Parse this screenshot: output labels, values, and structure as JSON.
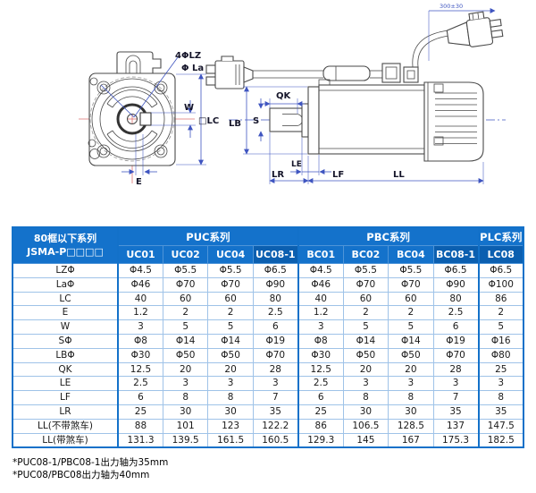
{
  "diagram": {
    "front_view": {
      "bolt_holes_label": "4ΦLZ",
      "bolt_circle_label": "Φ La",
      "key_width_label": "W",
      "frame_size_label": "□LC",
      "key_offset_label": "E"
    },
    "side_view": {
      "key_length_label": "QK",
      "shaft_dia_label": "S",
      "pilot_dia_label": "LB",
      "le_label": "LE",
      "lr_label": "LR",
      "lf_label": "LF",
      "body_length_label": "LL",
      "cable_length_label": "300±30"
    }
  },
  "table": {
    "corner": [
      "80框以下系列",
      "JSMA-P□□□□"
    ],
    "groups": [
      {
        "label": "PUC系列",
        "span": 4
      },
      {
        "label": "PBC系列",
        "span": 4
      },
      {
        "label": "PLC系列",
        "span": 1
      }
    ],
    "models": [
      "UC01",
      "UC02",
      "UC04",
      "UC08-1",
      "BC01",
      "BC02",
      "BC04",
      "BC08-1",
      "LC08"
    ],
    "highlight_cols": [
      3,
      7,
      8
    ],
    "group_start_cols": [
      0,
      4,
      8
    ],
    "rows": [
      {
        "label": "LZΦ",
        "values": [
          "Φ4.5",
          "Φ5.5",
          "Φ5.5",
          "Φ6.5",
          "Φ4.5",
          "Φ5.5",
          "Φ5.5",
          "Φ6.5",
          "Φ6.5"
        ]
      },
      {
        "label": "LaΦ",
        "values": [
          "Φ46",
          "Φ70",
          "Φ70",
          "Φ90",
          "Φ46",
          "Φ70",
          "Φ70",
          "Φ90",
          "Φ100"
        ]
      },
      {
        "label": "LC",
        "values": [
          "40",
          "60",
          "60",
          "80",
          "40",
          "60",
          "60",
          "80",
          "86"
        ]
      },
      {
        "label": "E",
        "values": [
          "1.2",
          "2",
          "2",
          "2.5",
          "1.2",
          "2",
          "2",
          "2.5",
          "2"
        ]
      },
      {
        "label": "W",
        "values": [
          "3",
          "5",
          "5",
          "6",
          "3",
          "5",
          "5",
          "6",
          "5"
        ]
      },
      {
        "label": "SΦ",
        "values": [
          "Φ8",
          "Φ14",
          "Φ14",
          "Φ19",
          "Φ8",
          "Φ14",
          "Φ14",
          "Φ19",
          "Φ16"
        ]
      },
      {
        "label": "LBΦ",
        "values": [
          "Φ30",
          "Φ50",
          "Φ50",
          "Φ70",
          "Φ30",
          "Φ50",
          "Φ50",
          "Φ70",
          "Φ80"
        ]
      },
      {
        "label": "QK",
        "values": [
          "12.5",
          "20",
          "20",
          "28",
          "12.5",
          "20",
          "20",
          "28",
          "25"
        ]
      },
      {
        "label": "LE",
        "values": [
          "2.5",
          "3",
          "3",
          "3",
          "2.5",
          "3",
          "3",
          "3",
          "3"
        ]
      },
      {
        "label": "LF",
        "values": [
          "6",
          "8",
          "8",
          "7",
          "6",
          "8",
          "8",
          "7",
          "8"
        ]
      },
      {
        "label": "LR",
        "values": [
          "25",
          "30",
          "30",
          "35",
          "25",
          "30",
          "30",
          "35",
          "35"
        ]
      },
      {
        "label": "LL(不带煞车)",
        "values": [
          "88",
          "101",
          "123",
          "122.2",
          "86",
          "106.5",
          "128.5",
          "137",
          "147.5"
        ]
      },
      {
        "label": "LL(带煞车)",
        "values": [
          "131.3",
          "139.5",
          "161.5",
          "160.5",
          "129.3",
          "145",
          "167",
          "175.3",
          "182.5"
        ]
      }
    ]
  },
  "footnotes": [
    "*PUC08-1/PBC08-1出力轴为35mm",
    "*PUC08/PBC08出力轴为40mm"
  ],
  "colors": {
    "header_blue": "#1472cb",
    "header_blue_dark": "#0b5fb0",
    "grid_blue": "#9fc3e8",
    "dim_blue": "#3f55c0",
    "centerline_red": "#dd7070"
  }
}
